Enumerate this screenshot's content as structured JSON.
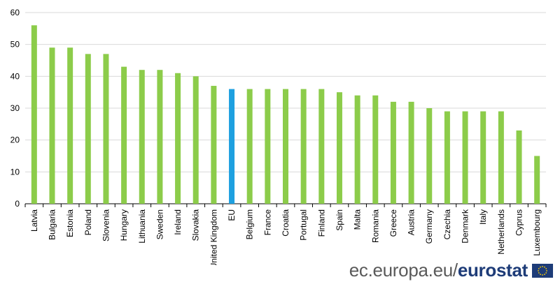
{
  "chart_data": {
    "type": "bar",
    "categories": [
      "Latvia",
      "Bulgaria",
      "Estonia",
      "Poland",
      "Slovenia",
      "Hungary",
      "Lithuania",
      "Sweden",
      "Ireland",
      "Slovakia",
      "United Kingdom",
      "EU",
      "Belgium",
      "France",
      "Croatia",
      "Portugal",
      "Finland",
      "Spain",
      "Malta",
      "Romania",
      "Greece",
      "Austria",
      "Germany",
      "Czechia",
      "Denmark",
      "Italy",
      "Netherlands",
      "Cyprus",
      "Luxembourg"
    ],
    "values": [
      56,
      49,
      49,
      47,
      47,
      43,
      42,
      42,
      41,
      40,
      37,
      36,
      36,
      36,
      36,
      36,
      36,
      35,
      34,
      34,
      32,
      32,
      30,
      29,
      29,
      29,
      29,
      23,
      15
    ],
    "highlight": "EU",
    "ylim": [
      0,
      60
    ],
    "yticks": [
      0,
      10,
      20,
      30,
      40,
      50,
      60
    ],
    "grid": true,
    "colors": {
      "bar": "#8ccc4a",
      "highlight": "#1ea0e0",
      "grid": "#d9d9d9",
      "axis": "#000000"
    }
  },
  "footer": {
    "site_prefix": "ec.europa.eu/",
    "site_brand": "eurostat"
  }
}
